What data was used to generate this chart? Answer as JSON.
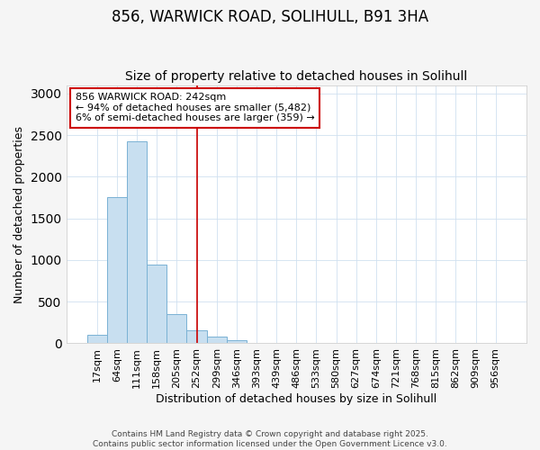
{
  "title": "856, WARWICK ROAD, SOLIHULL, B91 3HA",
  "subtitle": "Size of property relative to detached houses in Solihull",
  "xlabel": "Distribution of detached houses by size in Solihull",
  "ylabel": "Number of detached properties",
  "categories": [
    "17sqm",
    "64sqm",
    "111sqm",
    "158sqm",
    "205sqm",
    "252sqm",
    "299sqm",
    "346sqm",
    "393sqm",
    "439sqm",
    "486sqm",
    "533sqm",
    "580sqm",
    "627sqm",
    "674sqm",
    "721sqm",
    "768sqm",
    "815sqm",
    "862sqm",
    "909sqm",
    "956sqm"
  ],
  "values": [
    100,
    1750,
    2420,
    950,
    350,
    155,
    80,
    40,
    10,
    0,
    5,
    0,
    3,
    0,
    0,
    0,
    0,
    0,
    0,
    0,
    0
  ],
  "bar_color": "#c8dff0",
  "bar_edge_color": "#7ab2d4",
  "vline_x_index": 5,
  "vline_color": "#cc0000",
  "annotation_text": "856 WARWICK ROAD: 242sqm\n← 94% of detached houses are smaller (5,482)\n6% of semi-detached houses are larger (359) →",
  "annotation_box_facecolor": "#ffffff",
  "annotation_box_edgecolor": "#cc0000",
  "ylim": [
    0,
    3100
  ],
  "yticks": [
    0,
    500,
    1000,
    1500,
    2000,
    2500,
    3000
  ],
  "background_color": "#f5f5f5",
  "plot_bg_color": "#ffffff",
  "footer_text": "Contains HM Land Registry data © Crown copyright and database right 2025.\nContains public sector information licensed under the Open Government Licence v3.0.",
  "title_fontsize": 12,
  "subtitle_fontsize": 10,
  "tick_fontsize": 8,
  "ylabel_fontsize": 9,
  "xlabel_fontsize": 9,
  "annotation_fontsize": 8,
  "footer_fontsize": 6.5
}
